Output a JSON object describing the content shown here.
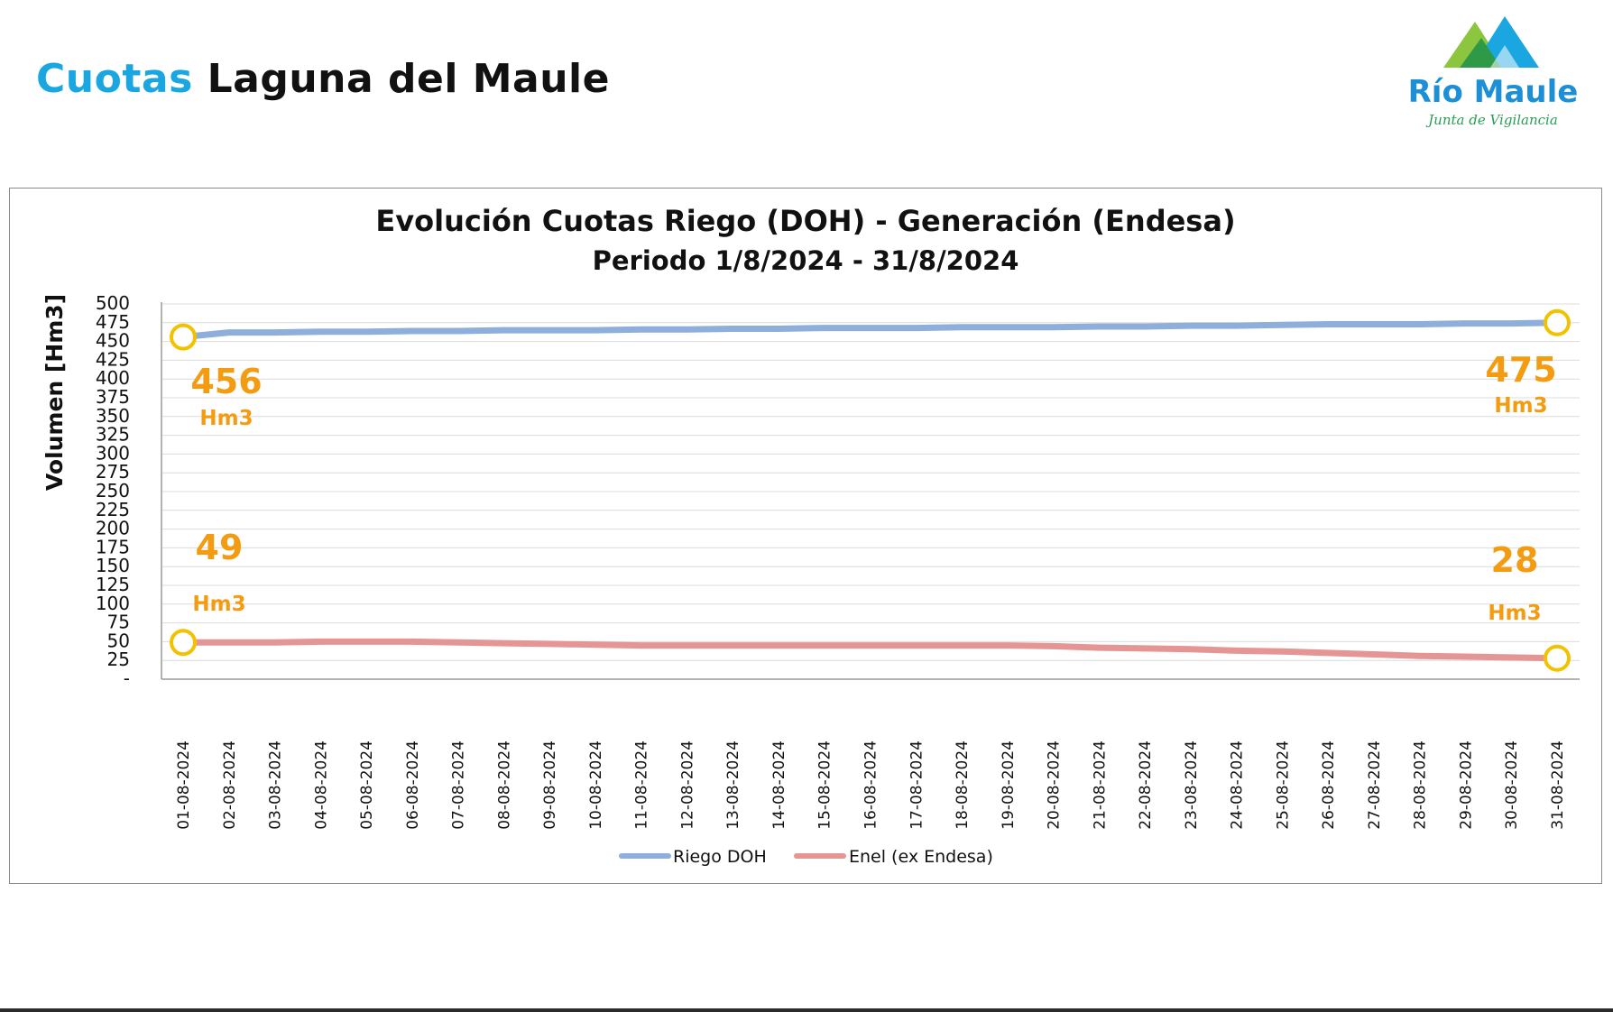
{
  "header": {
    "title_accent": "Cuotas",
    "title_rest": "Laguna del Maule"
  },
  "logo": {
    "name": "Río Maule",
    "subtitle": "Junta de Vigilancia"
  },
  "colors": {
    "accent": "#1aa6e0",
    "riego": "#8eaedc",
    "enel": "#e59593",
    "callout": "#f39c12",
    "marker": "#f2c200"
  },
  "chart_data": {
    "type": "line",
    "title": "Evolución Cuotas Riego (DOH) - Generación (Endesa)",
    "subtitle": "Periodo 1/8/2024 - 31/8/2024",
    "ylabel": "Volumen [Hm3]",
    "xlabel": "",
    "ylim": [
      0,
      500
    ],
    "yticks": [
      "-",
      "25",
      "50",
      "75",
      "100",
      "125",
      "150",
      "175",
      "200",
      "225",
      "250",
      "275",
      "300",
      "325",
      "350",
      "375",
      "400",
      "425",
      "450",
      "475",
      "500"
    ],
    "grid": true,
    "legend_position": "bottom",
    "categories": [
      "01-08-2024",
      "02-08-2024",
      "03-08-2024",
      "04-08-2024",
      "05-08-2024",
      "06-08-2024",
      "07-08-2024",
      "08-08-2024",
      "09-08-2024",
      "10-08-2024",
      "11-08-2024",
      "12-08-2024",
      "13-08-2024",
      "14-08-2024",
      "15-08-2024",
      "16-08-2024",
      "17-08-2024",
      "18-08-2024",
      "19-08-2024",
      "20-08-2024",
      "21-08-2024",
      "22-08-2024",
      "23-08-2024",
      "24-08-2024",
      "25-08-2024",
      "26-08-2024",
      "27-08-2024",
      "28-08-2024",
      "29-08-2024",
      "30-08-2024",
      "31-08-2024"
    ],
    "series": [
      {
        "name": "Riego DOH",
        "values": [
          456,
          462,
          462,
          463,
          463,
          464,
          464,
          465,
          465,
          465,
          466,
          466,
          467,
          467,
          468,
          468,
          468,
          469,
          469,
          469,
          470,
          470,
          471,
          471,
          472,
          473,
          473,
          473,
          474,
          474,
          475
        ]
      },
      {
        "name": "Enel (ex Endesa)",
        "values": [
          49,
          49,
          49,
          50,
          50,
          50,
          49,
          48,
          47,
          46,
          45,
          45,
          45,
          45,
          45,
          45,
          45,
          45,
          45,
          44,
          42,
          41,
          40,
          38,
          37,
          35,
          33,
          31,
          30,
          29,
          28
        ]
      }
    ],
    "annotations": [
      {
        "series": 0,
        "index": 0,
        "value": "456",
        "unit": "Hm3"
      },
      {
        "series": 0,
        "index": 30,
        "value": "475",
        "unit": "Hm3"
      },
      {
        "series": 1,
        "index": 0,
        "value": "49",
        "unit": "Hm3"
      },
      {
        "series": 1,
        "index": 30,
        "value": "28",
        "unit": "Hm3"
      }
    ]
  }
}
